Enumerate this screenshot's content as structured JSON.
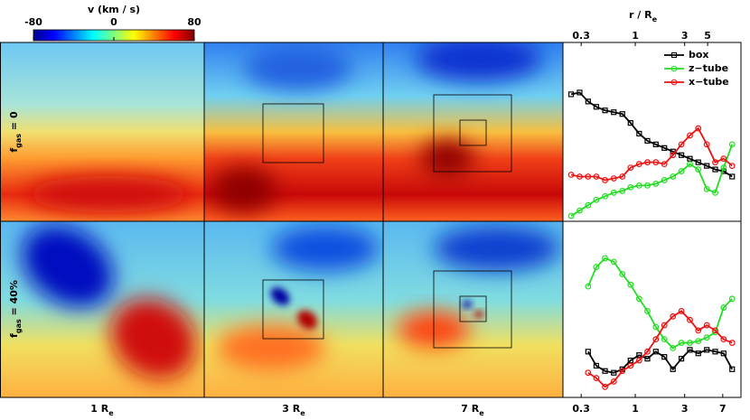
{
  "colorbar": {
    "label": "v (km / s)",
    "lim": [
      -80,
      80
    ],
    "ticks": [
      -80,
      0,
      80
    ]
  },
  "row_labels": [
    {
      "base": "f",
      "sub": "gas",
      "tail": " = 0"
    },
    {
      "base": "f",
      "sub": "gas",
      "tail": " = 40%"
    }
  ],
  "column_labels": [
    {
      "base": "1 R",
      "sub": "e"
    },
    {
      "base": "3 R",
      "sub": "e"
    },
    {
      "base": "7 R",
      "sub": "e"
    }
  ],
  "chart_data": [
    {
      "type": "line",
      "x_label": {
        "base": "r / R",
        "sub": "e"
      },
      "x_axis_position": "top",
      "xscale": "log",
      "xlim": [
        0.2,
        10.5
      ],
      "xticks": [
        0.3,
        1,
        3,
        5
      ],
      "ylim": [
        0,
        1
      ],
      "legend": "upper right",
      "x": [
        0.24,
        0.29,
        0.35,
        0.42,
        0.51,
        0.62,
        0.75,
        0.9,
        1.09,
        1.31,
        1.58,
        1.91,
        2.31,
        2.79,
        3.37,
        4.06,
        4.91,
        5.92,
        7.14,
        8.63
      ],
      "series": [
        {
          "name": "box",
          "color": "#000000",
          "marker": "square",
          "values": [
            0.71,
            0.72,
            0.67,
            0.64,
            0.62,
            0.61,
            0.6,
            0.55,
            0.49,
            0.45,
            0.43,
            0.41,
            0.39,
            0.37,
            0.35,
            0.33,
            0.31,
            0.29,
            0.28,
            0.25
          ]
        },
        {
          "name": "z−tube",
          "color": "#22dd22",
          "marker": "circle",
          "values": [
            0.03,
            0.06,
            0.09,
            0.12,
            0.14,
            0.16,
            0.17,
            0.19,
            0.2,
            0.2,
            0.21,
            0.23,
            0.25,
            0.28,
            0.32,
            0.29,
            0.18,
            0.16,
            0.3,
            0.43
          ]
        },
        {
          "name": "x−tube",
          "color": "#ee1111",
          "marker": "circle",
          "values": [
            0.26,
            0.25,
            0.25,
            0.25,
            0.23,
            0.24,
            0.25,
            0.3,
            0.32,
            0.33,
            0.33,
            0.32,
            0.37,
            0.43,
            0.48,
            0.52,
            0.43,
            0.33,
            0.35,
            0.31
          ]
        }
      ]
    },
    {
      "type": "line",
      "x_axis_position": "bottom",
      "xscale": "log",
      "xlim": [
        0.2,
        10.5
      ],
      "xticks": [
        0.3,
        1,
        3,
        7
      ],
      "ylim": [
        0,
        1
      ],
      "x": [
        0.24,
        0.29,
        0.35,
        0.42,
        0.51,
        0.62,
        0.75,
        0.9,
        1.09,
        1.31,
        1.58,
        1.91,
        2.31,
        2.79,
        3.37,
        4.06,
        4.91,
        5.92,
        7.14,
        8.63
      ],
      "series": [
        {
          "color": "#000000",
          "marker": "square",
          "values": [
            null,
            null,
            0.26,
            0.18,
            0.15,
            0.14,
            0.16,
            0.21,
            0.24,
            0.22,
            0.26,
            0.23,
            0.16,
            0.22,
            0.27,
            0.25,
            0.27,
            0.26,
            0.25,
            0.16
          ]
        },
        {
          "color": "#22dd22",
          "marker": "circle",
          "values": [
            null,
            null,
            0.63,
            0.74,
            0.79,
            0.77,
            0.7,
            0.64,
            0.56,
            0.49,
            0.4,
            0.33,
            0.28,
            0.31,
            0.31,
            0.32,
            0.34,
            0.37,
            0.51,
            0.56
          ]
        },
        {
          "color": "#ee1111",
          "marker": "circle",
          "values": [
            null,
            null,
            0.14,
            0.11,
            0.06,
            0.09,
            0.15,
            0.18,
            0.21,
            0.26,
            0.33,
            0.41,
            0.46,
            0.49,
            0.44,
            0.38,
            0.41,
            0.38,
            0.33,
            0.31
          ]
        }
      ]
    }
  ]
}
